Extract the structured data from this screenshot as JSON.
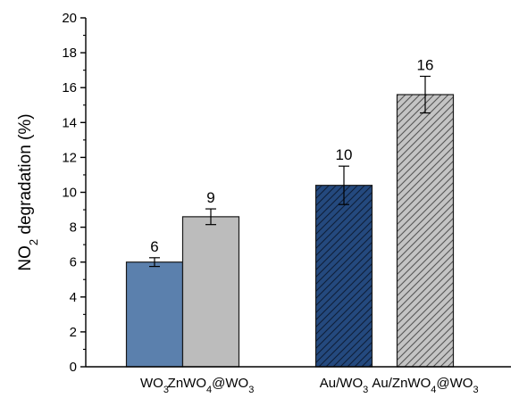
{
  "chart_data": {
    "type": "bar",
    "title": "",
    "xlabel": "",
    "ylabel": {
      "prefix": "NO",
      "subscript": "2",
      "suffix": " degradation (%)"
    },
    "ylim": [
      0,
      20
    ],
    "yticks": [
      0,
      2,
      4,
      6,
      8,
      10,
      12,
      14,
      16,
      18,
      20
    ],
    "grid": false,
    "categories": [
      {
        "parts": [
          [
            "WO",
            ""
          ],
          [
            "3",
            "sub"
          ]
        ]
      },
      {
        "parts": [
          [
            "ZnWO",
            ""
          ],
          [
            "4",
            "sub"
          ],
          [
            "@WO",
            ""
          ],
          [
            "3",
            "sub"
          ]
        ]
      },
      {
        "parts": [
          [
            "Au/WO",
            ""
          ],
          [
            "3",
            "sub"
          ]
        ]
      },
      {
        "parts": [
          [
            "Au/ZnWO",
            ""
          ],
          [
            "4",
            "sub"
          ],
          [
            "@WO",
            ""
          ],
          [
            "3",
            "sub"
          ]
        ]
      }
    ],
    "values": [
      6.0,
      8.6,
      10.4,
      15.6
    ],
    "errors": [
      0.25,
      0.45,
      1.1,
      1.05
    ],
    "data_labels": [
      "6",
      "9",
      "10",
      "16"
    ],
    "colors": [
      "#5b80ad",
      "#bcbcbc",
      "#24497e",
      "#c4c4c4"
    ],
    "hatched": [
      false,
      false,
      true,
      true
    ]
  }
}
